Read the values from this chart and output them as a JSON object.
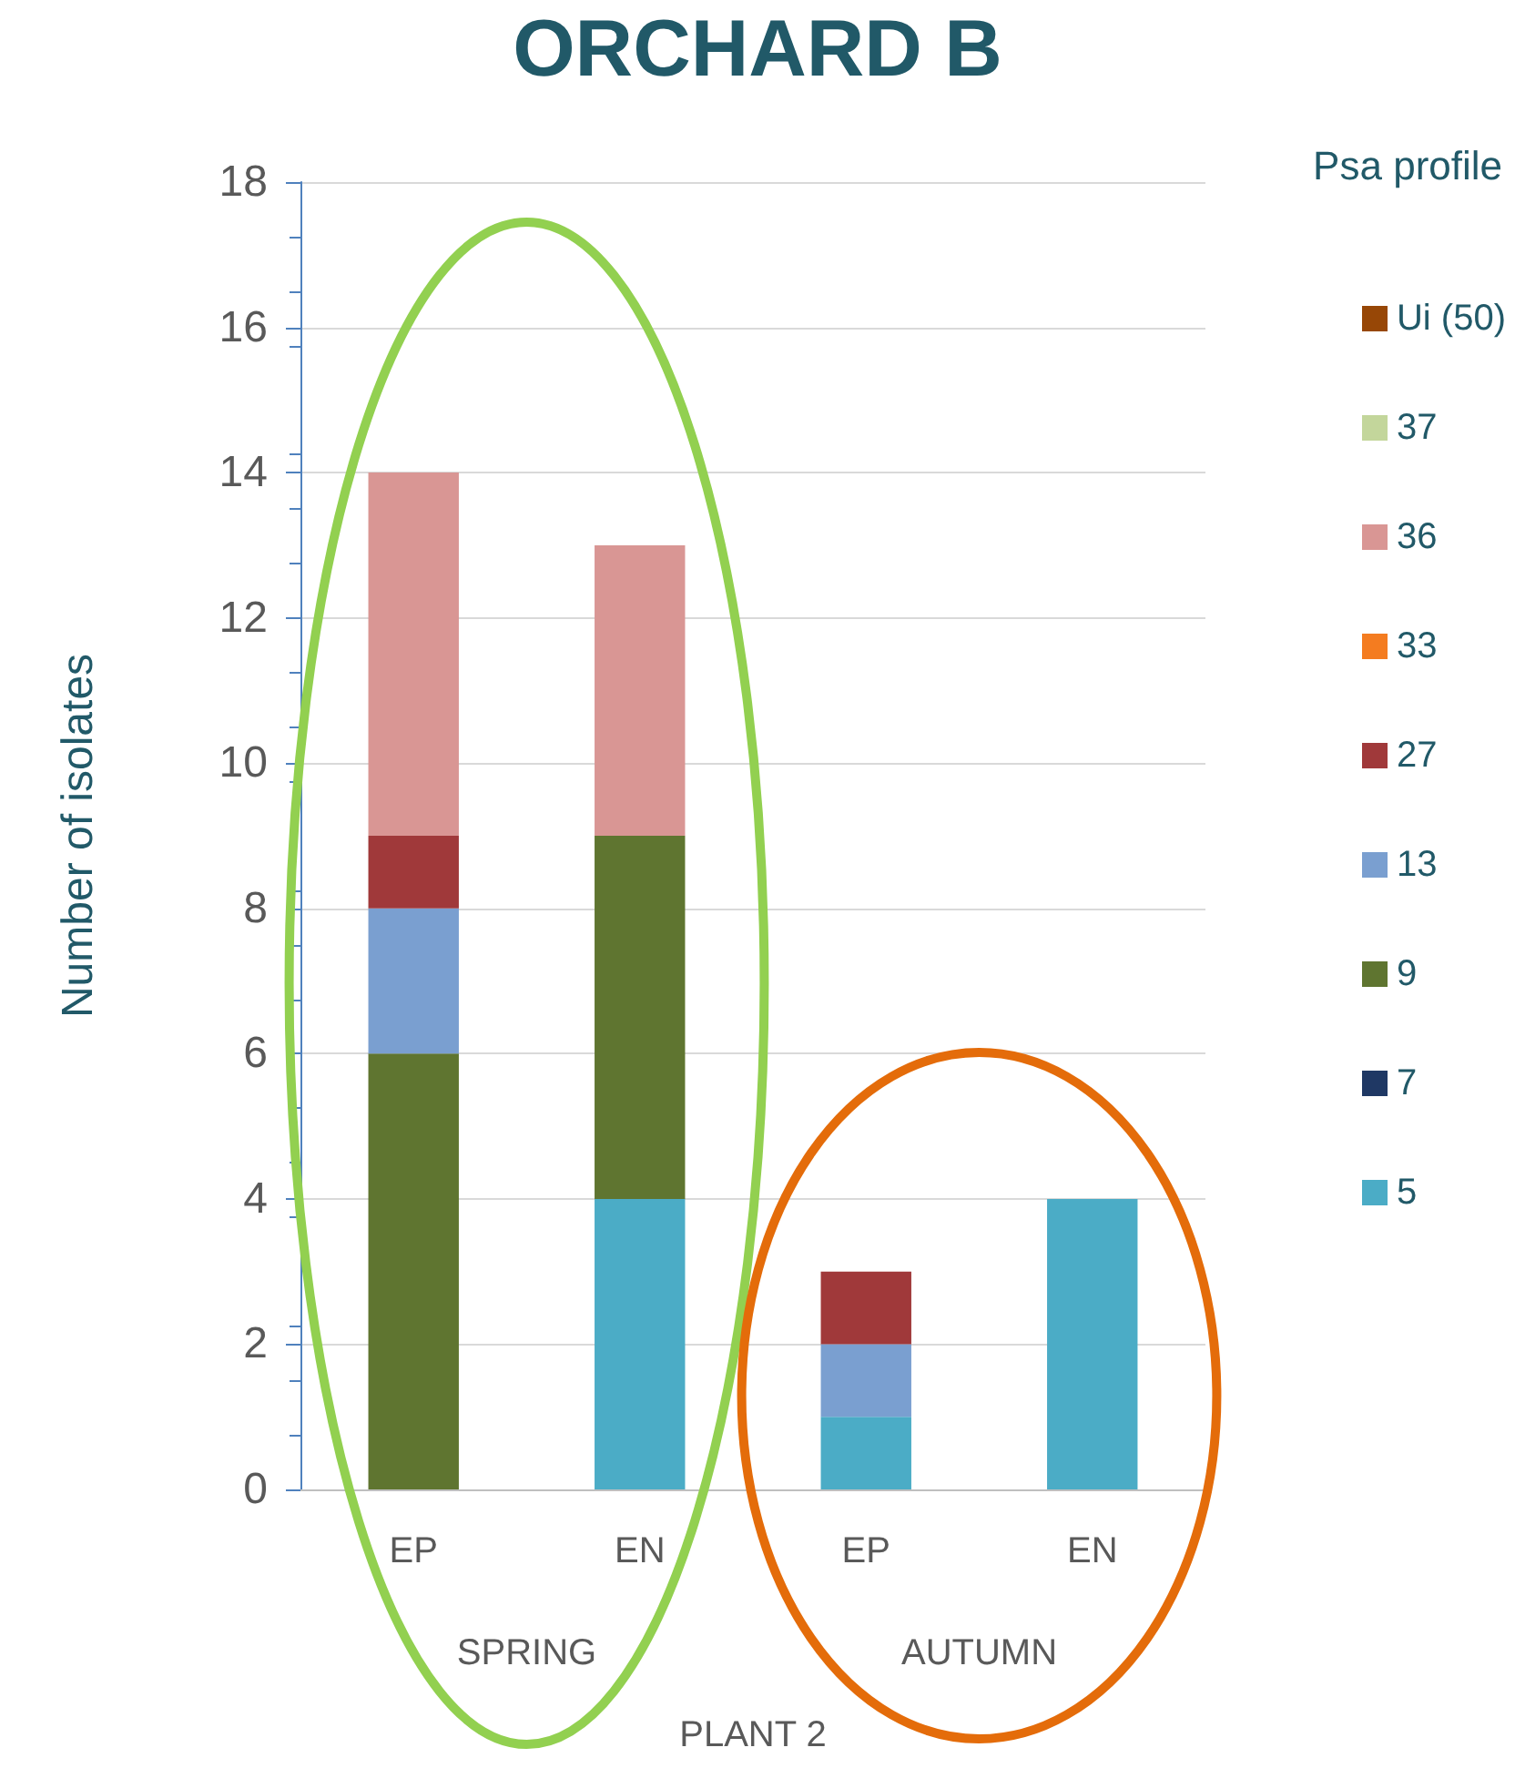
{
  "chart_data": {
    "type": "bar",
    "title": "ORCHARD B",
    "ylabel": "Number of isolates",
    "legend_title": "Psa profile",
    "categories": [
      "EP",
      "EN",
      "EP",
      "EN"
    ],
    "stacked": true,
    "series": [
      {
        "name": "5",
        "color": "#4bacc6",
        "values": [
          0,
          4,
          1,
          4
        ]
      },
      {
        "name": "7",
        "color": "#1f3864",
        "values": [
          0,
          0,
          0,
          0
        ]
      },
      {
        "name": "9",
        "color": "#5f7530",
        "values": [
          6,
          5,
          0,
          0
        ]
      },
      {
        "name": "13",
        "color": "#7a9fd0",
        "values": [
          2,
          0,
          1,
          0
        ]
      },
      {
        "name": "27",
        "color": "#a0393a",
        "values": [
          1,
          0,
          1,
          0
        ]
      },
      {
        "name": "33",
        "color": "#f47c20",
        "values": [
          0,
          0,
          0,
          0
        ]
      },
      {
        "name": "36",
        "color": "#d99694",
        "values": [
          5,
          4,
          0,
          0
        ]
      },
      {
        "name": "37",
        "color": "#c3d69b",
        "values": [
          0,
          0,
          0,
          0
        ]
      },
      {
        "name": "Ui (50)",
        "color": "#974706",
        "values": [
          0,
          0,
          0,
          0
        ]
      }
    ],
    "ylim": [
      0,
      18
    ],
    "yticks": [
      0,
      2,
      4,
      6,
      8,
      10,
      12,
      14,
      16,
      18
    ],
    "grid": "y",
    "legend": "right",
    "annotations": [
      "SPRING",
      "AUTUMN",
      "PLANT 2"
    ]
  }
}
